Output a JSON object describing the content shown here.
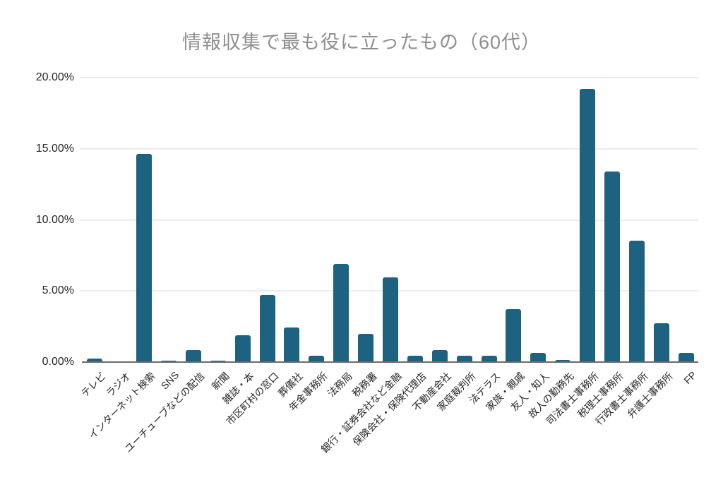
{
  "style": {
    "bar_color": "#1e6282",
    "title_color": "#8f8f8f",
    "grid_color": "#d9d9d9",
    "axis_color": "#6b6b6b",
    "tick_label_color": "#262626",
    "background_color": "#ffffff"
  },
  "chart_data": {
    "type": "bar",
    "title": "情報収集で最も役に立ったもの（60代）",
    "xlabel": "",
    "ylabel": "",
    "ylim": [
      0,
      20
    ],
    "yticks": [
      0,
      5,
      10,
      15,
      20
    ],
    "ytick_labels": [
      "0.00%",
      "5.00%",
      "10.00%",
      "15.00%",
      "20.00%"
    ],
    "grid": "horizontal",
    "legend": "none",
    "bar_unit": "percent",
    "categories": [
      "テレビ",
      "ラジオ",
      "インターネット検索",
      "SNS",
      "ユーチューブなどの配信",
      "新聞",
      "雑誌・本",
      "市区町村の窓口",
      "葬儀社",
      "年金事務所",
      "法務局",
      "税務署",
      "銀行・証券会社など金融",
      "保険会社・保険代理店",
      "不動産会社",
      "家庭裁判所",
      "法テラス",
      "家族・親戚",
      "友人・知人",
      "故人の勤務先",
      "司法書士事務所",
      "税理士事務所",
      "行政書士事務所",
      "弁護士事務所",
      "FP"
    ],
    "values": [
      0.25,
      0,
      14.65,
      0.12,
      0.85,
      0.12,
      1.9,
      4.7,
      2.45,
      0.45,
      6.9,
      2.0,
      5.95,
      0.45,
      0.85,
      0.45,
      0.45,
      3.7,
      0.66,
      0.15,
      19.2,
      13.4,
      8.55,
      2.75,
      0.65
    ]
  }
}
